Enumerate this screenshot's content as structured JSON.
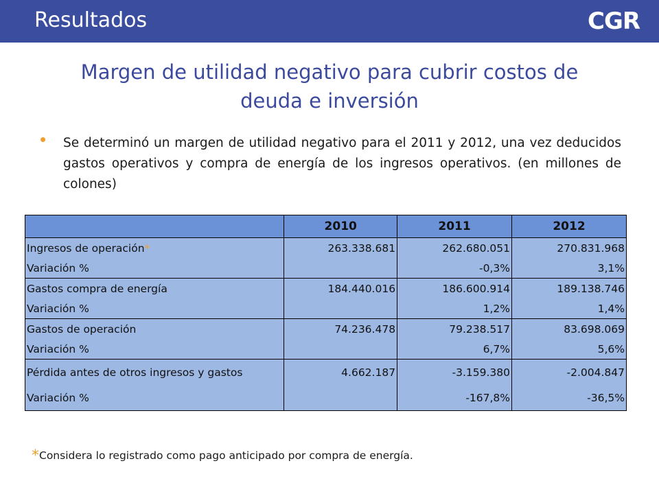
{
  "header": {
    "section_title": "Resultados",
    "logo_text": "CGR",
    "bar_color": "#3a4d9e"
  },
  "slide": {
    "title_line1": "Margen de utilidad negativo para cubrir costos de",
    "title_line2": "deuda e inversión",
    "bullet_text": "Se determinó un margen de utilidad negativo para el   2011 y 2012, una vez deducidos gastos operativos y compra de energía de los ingresos operativos.  (en millones de colones)"
  },
  "table": {
    "columns": [
      "",
      "2010",
      "2011",
      "2012"
    ],
    "rows": [
      {
        "label": " Ingresos de operación",
        "star": "*",
        "v2010": "263.338.681",
        "v2011": "262.680.051",
        "v2012": "270.831.968"
      },
      {
        "label": "Variación %",
        "star": "",
        "v2010": "",
        "v2011": "-0,3%",
        "v2012": "3,1%"
      },
      {
        "label": "Gastos compra de energía",
        "star": "",
        "v2010": "184.440.016",
        "v2011": "186.600.914",
        "v2012": "189.138.746"
      },
      {
        "label": "Variación %",
        "star": "",
        "v2010": "",
        "v2011": "1,2%",
        "v2012": "1,4%"
      },
      {
        "label": "Gastos de operación",
        "star": "",
        "v2010": "74.236.478",
        "v2011": "79.238.517",
        "v2012": "83.698.069"
      },
      {
        "label": "Variación %",
        "star": "",
        "v2010": "",
        "v2011": "6,7%",
        "v2012": "5,6%"
      },
      {
        "label": "Pérdida antes de otros ingresos y gastos",
        "star": "",
        "v2010": "4.662.187",
        "v2011": "-3.159.380",
        "v2012": "-2.004.847"
      },
      {
        "label": "Variación %",
        "star": "",
        "v2010": "",
        "v2011": "-167,8%",
        "v2012": "-36,5%"
      }
    ]
  },
  "footnote": {
    "marker": "*",
    "text": "Considera lo registrado como pago anticipado por compra de energía."
  }
}
